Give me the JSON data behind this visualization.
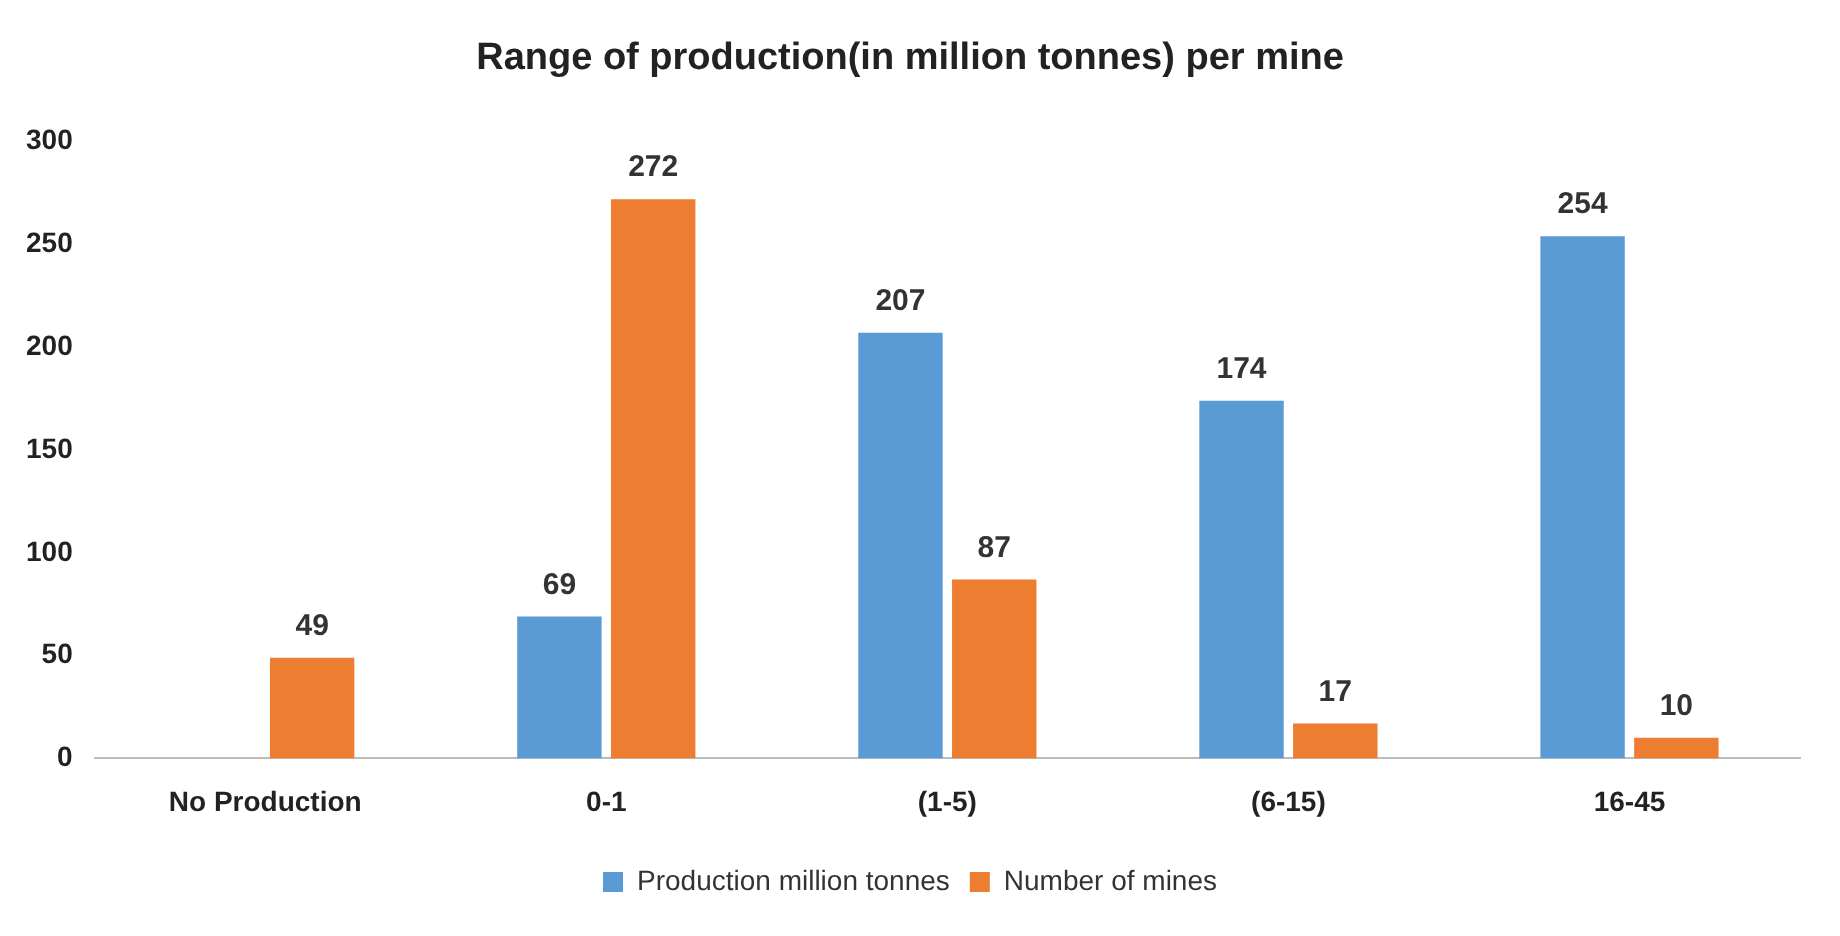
{
  "chart_data": {
    "type": "bar",
    "title": "Range of production(in million tonnes) per mine",
    "categories": [
      "No Production",
      "0-1",
      "(1-5)",
      "(6-15)",
      "16-45"
    ],
    "series": [
      {
        "name": "Production million tonnes",
        "color": "#5b9bd5",
        "values": [
          null,
          69,
          207,
          174,
          254
        ]
      },
      {
        "name": "Number of mines",
        "color": "#ed7d31",
        "values": [
          49,
          272,
          87,
          17,
          10
        ]
      }
    ],
    "ylim": [
      0,
      300
    ],
    "yticks": [
      0,
      50,
      100,
      150,
      200,
      250,
      300
    ],
    "grid": false,
    "legend": "bottom",
    "data_labels": true
  }
}
